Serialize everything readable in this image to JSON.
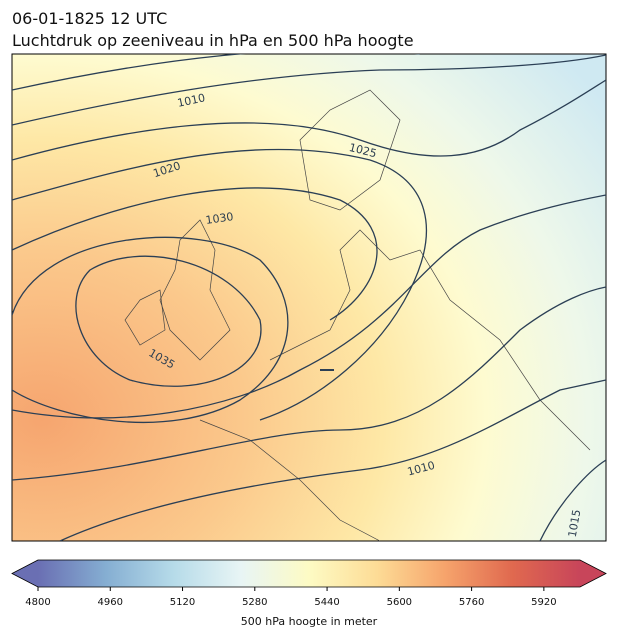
{
  "title": "06-01-1825 12 UTC",
  "subtitle": "Luchtdruk op zeeniveau in hPa en 500 hPa hoogte",
  "contour_labels": [
    "1010",
    "1020",
    "1025",
    "1030",
    "1035",
    "1010",
    "1015"
  ],
  "colorbar": {
    "label": "500 hPa hoogte in meter",
    "lim": [
      4800,
      6000
    ],
    "ticks": [
      4800,
      4960,
      5120,
      5280,
      5440,
      5600,
      5760,
      5920
    ],
    "colors": [
      "#6a6fb3",
      "#85aed2",
      "#b6dbe9",
      "#e8f5f5",
      "#fdfbc4",
      "#fddc96",
      "#f6a46c",
      "#e0694f",
      "#c8455a"
    ]
  }
}
